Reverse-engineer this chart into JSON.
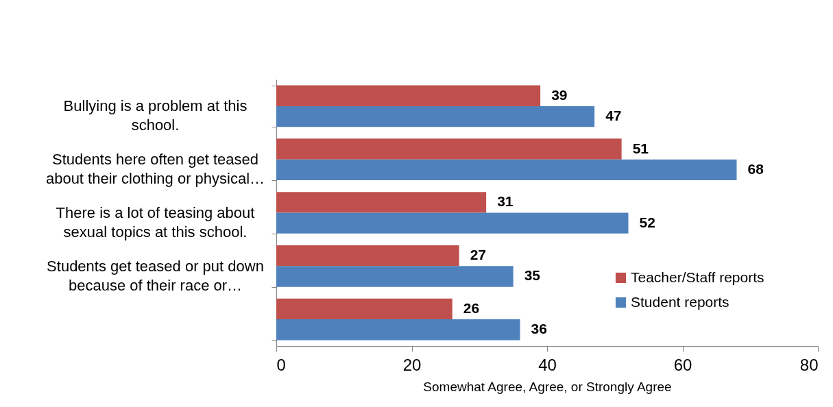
{
  "chart_data": {
    "type": "bar",
    "orientation": "horizontal",
    "categories": [
      "Bullying is a problem at this school.",
      "Students here often get teased about their clothing or physical…",
      "There is a lot of teasing about sexual topics at this school.",
      "Students get teased or put down because of their race or…",
      null
    ],
    "series": [
      {
        "name": "Teacher/Staff reports",
        "color": "#c0504d",
        "values": [
          39,
          51,
          31,
          27,
          26
        ]
      },
      {
        "name": "Student reports",
        "color": "#4f81bd",
        "values": [
          47,
          68,
          52,
          35,
          36
        ]
      }
    ],
    "xlabel": "Somewhat Agree, Agree, or Strongly Agree",
    "xlim": [
      0,
      80
    ],
    "xticks": [
      0,
      20,
      40,
      60,
      80
    ],
    "data_labels": true,
    "legend": "bottom right"
  }
}
